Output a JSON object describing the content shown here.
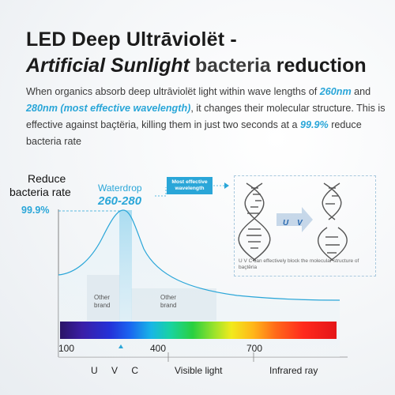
{
  "title": {
    "line1": "LED Deep Ultrāviolët -",
    "line2_italic": "Artificial Sunlight",
    "line2_faint": "bacteria",
    "line2_end": "reduction"
  },
  "description": {
    "p1": "When organics absorb deep ultrāviolët light within wave lengths of ",
    "hl1": "260nm",
    "p2": " and ",
    "hl2": "280nm (most effective wavelength)",
    "p3": ", it changes their molecular structure. This is effective against baçtëria, killing them in just two seconds at a ",
    "hl3": "99.9%",
    "p4": " reduce bacteria rate"
  },
  "chart": {
    "reduce_line1": "Reduce",
    "reduce_line2": "bacteria rate",
    "percent": "99.9%",
    "waterdrop": "Waterdrop",
    "range": "260-280",
    "most_effective_1": "Most effective",
    "most_effective_2": "wavelength",
    "other_brand_1a": "Other",
    "other_brand_1b": "brand",
    "other_brand_2a": "Other",
    "other_brand_2b": "brand"
  },
  "dna": {
    "uv_label": "U V",
    "caption": "U V C can effectively block the molecular structure of baçtëria"
  },
  "axis": {
    "tick_100": "100",
    "tick_400": "400",
    "tick_700": "700",
    "uvc": "U V C",
    "visible": "Visible light",
    "infrared": "Infrared ray"
  },
  "colors": {
    "accent": "#2aa6d8",
    "curve": "#2aa6d8",
    "text": "#1b1b1b"
  }
}
